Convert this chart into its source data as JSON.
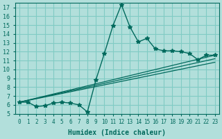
{
  "xlabel": "Humidex (Indice chaleur)",
  "ylabel": "",
  "bg_color": "#b2dfdb",
  "grid_color": "#80cbc4",
  "line_color": "#00695c",
  "xlim": [
    -0.5,
    23.5
  ],
  "ylim": [
    5,
    17.5
  ],
  "xticks": [
    0,
    1,
    2,
    3,
    4,
    5,
    6,
    7,
    8,
    9,
    10,
    11,
    12,
    13,
    14,
    15,
    16,
    17,
    18,
    19,
    20,
    21,
    22,
    23
  ],
  "yticks": [
    5,
    6,
    7,
    8,
    9,
    10,
    11,
    12,
    13,
    14,
    15,
    16,
    17
  ],
  "line1_x": [
    0,
    1,
    2,
    3,
    4,
    5,
    6,
    7,
    8,
    9,
    10,
    11,
    12,
    13,
    14,
    15,
    16,
    17,
    18,
    19,
    20,
    21,
    22,
    23
  ],
  "line1_y": [
    6.3,
    6.3,
    5.8,
    5.9,
    6.2,
    6.3,
    6.2,
    6.0,
    5.2,
    8.8,
    11.8,
    14.9,
    17.3,
    14.8,
    13.1,
    13.5,
    12.3,
    12.1,
    12.1,
    12.0,
    11.8,
    11.1,
    11.6,
    11.6
  ],
  "line2_x": [
    0,
    23
  ],
  "line2_y": [
    6.3,
    11.6
  ],
  "line3_x": [
    0,
    23
  ],
  "line3_y": [
    6.3,
    10.8
  ],
  "line4_x": [
    0,
    23
  ],
  "line4_y": [
    6.3,
    11.2
  ]
}
